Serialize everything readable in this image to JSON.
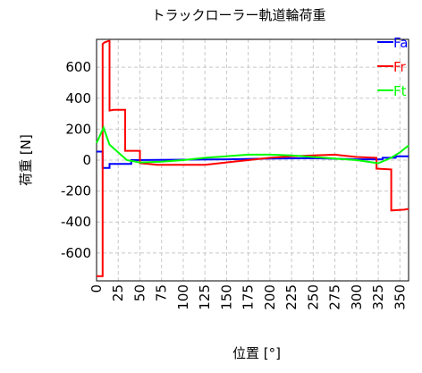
{
  "chart_data": {
    "type": "line",
    "title": "トラックローラー軌道輪荷重",
    "xlabel": "位置 [°]",
    "ylabel": "荷重 [N]",
    "xlim": [
      0,
      360
    ],
    "ylim": [
      -780,
      780
    ],
    "xticks": [
      0,
      25,
      50,
      75,
      100,
      125,
      150,
      175,
      200,
      225,
      250,
      275,
      300,
      325,
      350
    ],
    "yticks": [
      -600,
      -400,
      -200,
      0,
      200,
      400,
      600
    ],
    "grid": true,
    "legend_position": "top-right",
    "series": [
      {
        "name": "Fa",
        "color": "#0000ff",
        "points": [
          [
            0,
            55
          ],
          [
            7,
            55
          ],
          [
            7,
            -50
          ],
          [
            15,
            -50
          ],
          [
            15,
            -25
          ],
          [
            40,
            -25
          ],
          [
            40,
            0
          ],
          [
            150,
            5
          ],
          [
            200,
            10
          ],
          [
            250,
            12
          ],
          [
            300,
            5
          ],
          [
            330,
            5
          ],
          [
            330,
            15
          ],
          [
            345,
            15
          ],
          [
            345,
            25
          ],
          [
            360,
            25
          ]
        ]
      },
      {
        "name": "Fr",
        "color": "#ff0000",
        "points": [
          [
            0,
            -750
          ],
          [
            7,
            -750
          ],
          [
            7,
            750
          ],
          [
            9,
            760
          ],
          [
            14,
            770
          ],
          [
            15,
            770
          ],
          [
            15,
            320
          ],
          [
            20,
            325
          ],
          [
            33,
            325
          ],
          [
            33,
            60
          ],
          [
            50,
            60
          ],
          [
            50,
            -20
          ],
          [
            60,
            -25
          ],
          [
            70,
            -30
          ],
          [
            125,
            -30
          ],
          [
            150,
            -15
          ],
          [
            175,
            0
          ],
          [
            200,
            15
          ],
          [
            225,
            25
          ],
          [
            250,
            30
          ],
          [
            275,
            35
          ],
          [
            300,
            20
          ],
          [
            323,
            15
          ],
          [
            323,
            -55
          ],
          [
            340,
            -60
          ],
          [
            340,
            -325
          ],
          [
            355,
            -320
          ],
          [
            360,
            -315
          ]
        ]
      },
      {
        "name": "Ft",
        "color": "#00ff00",
        "points": [
          [
            0,
            110
          ],
          [
            8,
            210
          ],
          [
            15,
            100
          ],
          [
            35,
            0
          ],
          [
            50,
            -15
          ],
          [
            75,
            -10
          ],
          [
            100,
            0
          ],
          [
            125,
            15
          ],
          [
            150,
            25
          ],
          [
            175,
            35
          ],
          [
            200,
            35
          ],
          [
            225,
            30
          ],
          [
            250,
            20
          ],
          [
            275,
            10
          ],
          [
            300,
            0
          ],
          [
            325,
            -20
          ],
          [
            340,
            15
          ],
          [
            350,
            50
          ],
          [
            360,
            95
          ]
        ]
      }
    ]
  }
}
